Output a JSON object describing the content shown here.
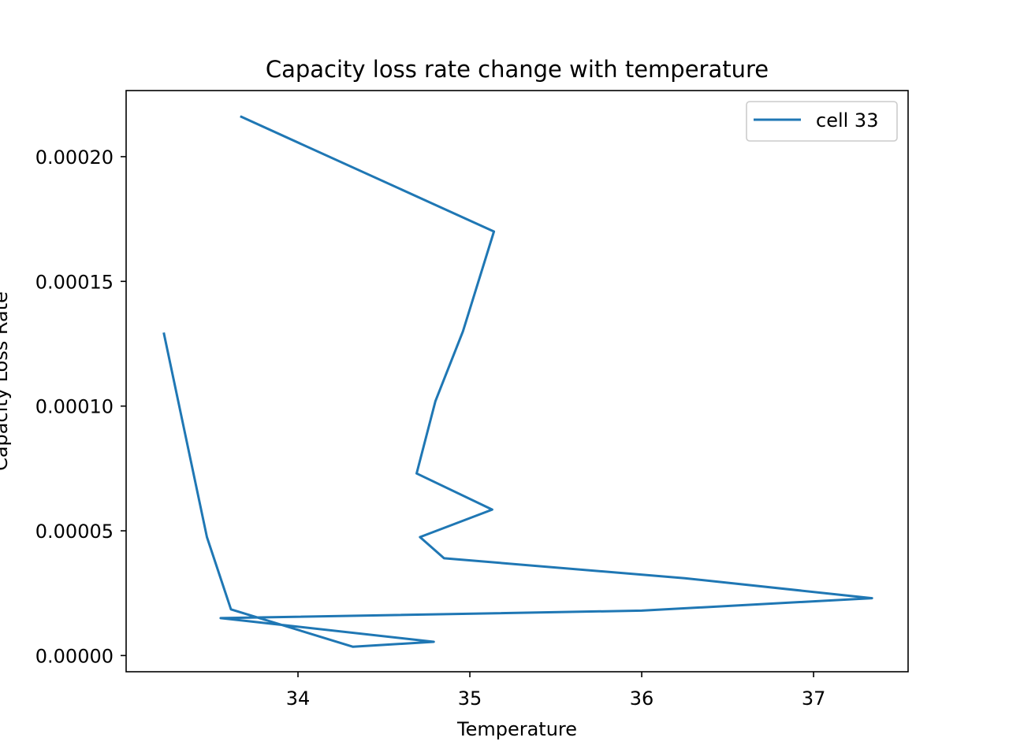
{
  "chart_data": {
    "type": "line",
    "title": "Capacity loss rate change with temperature",
    "xlabel": "Temperature",
    "ylabel": "Capacity Loss Rate",
    "xlim": [
      33.0,
      37.55
    ],
    "ylim": [
      -6.5e-06,
      0.0002265
    ],
    "xticks": [
      {
        "value": 34,
        "label": "34"
      },
      {
        "value": 35,
        "label": "35"
      },
      {
        "value": 36,
        "label": "36"
      },
      {
        "value": 37,
        "label": "37"
      }
    ],
    "yticks": [
      {
        "value": 0.0,
        "label": "0.00000"
      },
      {
        "value": 5e-05,
        "label": "0.00005"
      },
      {
        "value": 0.0001,
        "label": "0.00010"
      },
      {
        "value": 0.00015,
        "label": "0.00015"
      },
      {
        "value": 0.0002,
        "label": "0.00020"
      }
    ],
    "grid": false,
    "legend_position": "top-right",
    "series": [
      {
        "name": "cell 33",
        "color": "#1f77b4",
        "x": [
          33.67,
          35.14,
          34.96,
          34.8,
          34.69,
          35.13,
          34.71,
          34.85,
          36.25,
          37.34,
          36.0,
          33.55,
          34.79,
          34.32,
          33.61,
          33.47,
          33.22
        ],
        "y": [
          0.000216,
          0.00017,
          0.00013,
          0.000102,
          7.3e-05,
          5.85e-05,
          4.75e-05,
          3.9e-05,
          3.1e-05,
          2.3e-05,
          1.8e-05,
          1.5e-05,
          5.5e-06,
          3.5e-06,
          1.85e-05,
          4.75e-05,
          0.000129
        ]
      }
    ]
  }
}
